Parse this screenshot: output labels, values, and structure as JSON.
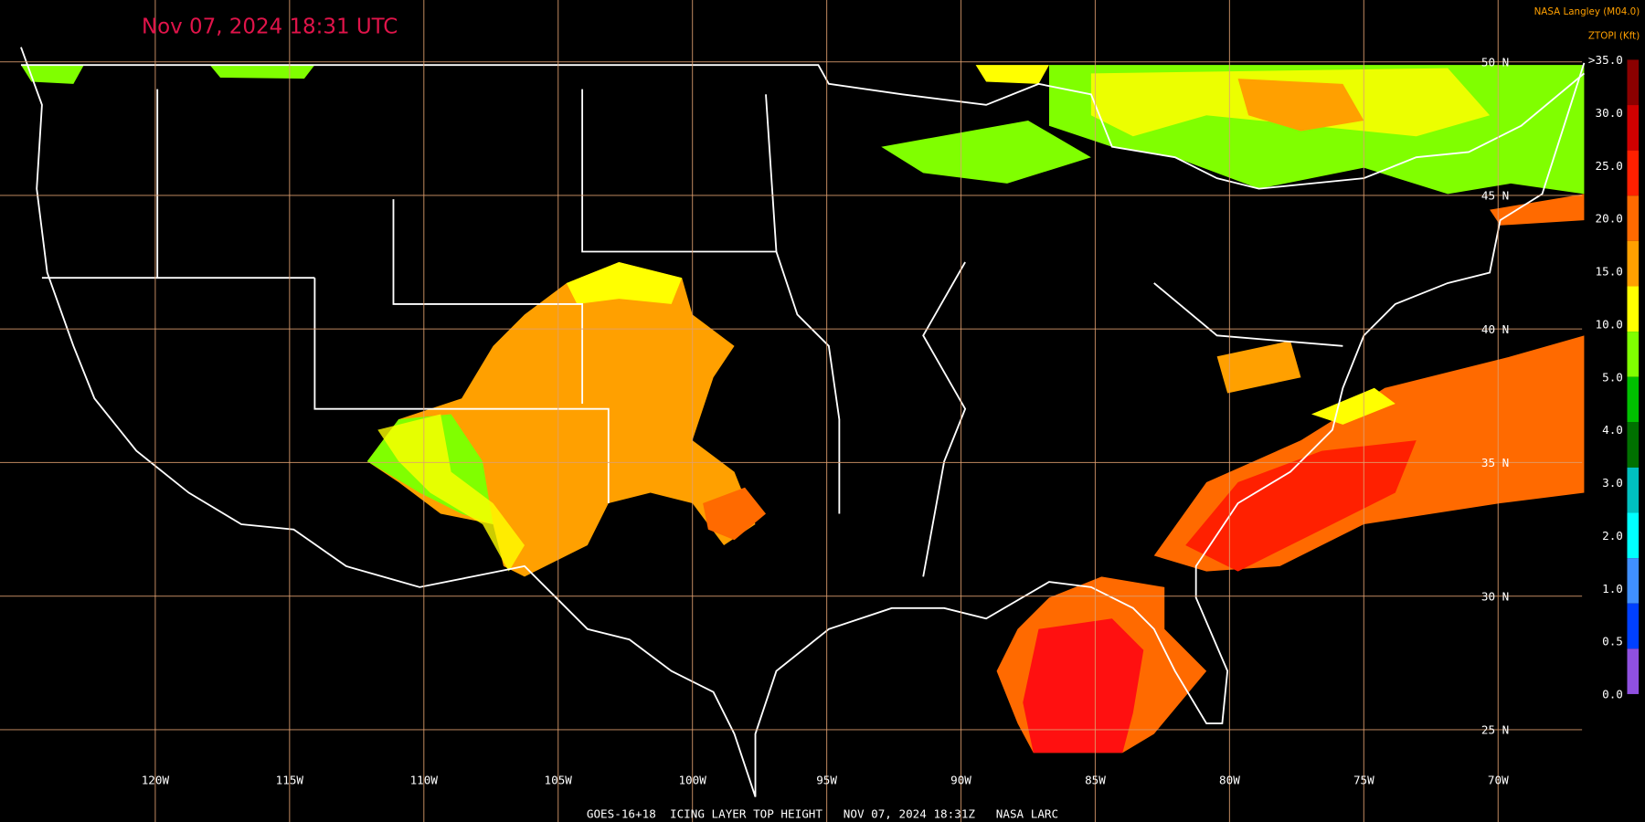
{
  "header": {
    "title": "Nov 07, 2024 18:31 UTC",
    "source": "NASA Langley (M04.0)"
  },
  "legend": {
    "title": "ZTOPI (Kft)",
    "labels": [
      ">35.0",
      "30.0",
      "25.0",
      "20.0",
      "15.0",
      "10.0",
      "5.0",
      "4.0",
      "3.0",
      "2.0",
      "1.0",
      "0.5",
      "0.0"
    ],
    "colors": [
      "#8b0000",
      "#d00000",
      "#ff2000",
      "#ff6a00",
      "#ffa000",
      "#ffff00",
      "#80ff00",
      "#00c000",
      "#007000",
      "#00c0c0",
      "#00ffff",
      "#4090ff",
      "#0040ff",
      "#9050e0"
    ]
  },
  "latitudes": [
    "50 N",
    "45 N",
    "40 N",
    "35 N",
    "30 N",
    "25 N"
  ],
  "longitudes": [
    "120W",
    "115W",
    "110W",
    "105W",
    "100W",
    "95W",
    "90W",
    "85W",
    "80W",
    "75W",
    "70W"
  ],
  "footer": "GOES-16+18  ICING LAYER TOP HEIGHT   NOV 07, 2024 18:31Z   NASA LARC"
}
